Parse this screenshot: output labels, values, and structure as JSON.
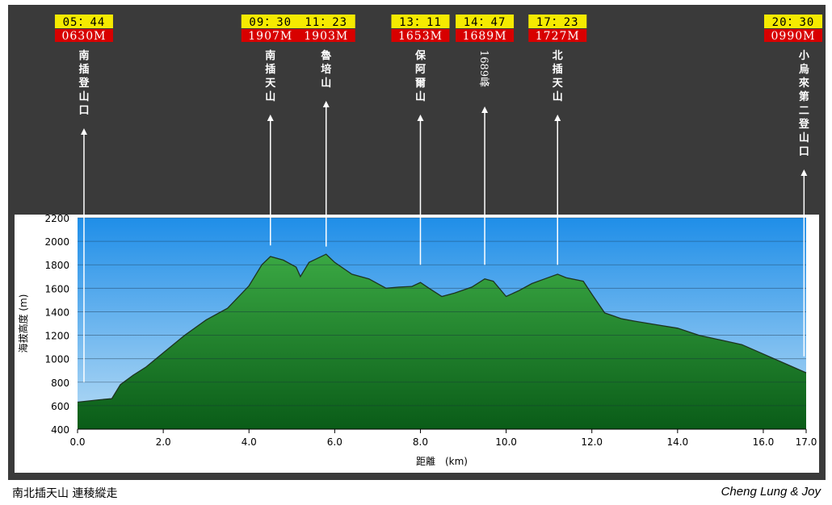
{
  "footer": {
    "title": "南北插天山 連稜縱走",
    "credit": "Cheng Lung & Joy"
  },
  "colors": {
    "frame": "#3a3a3a",
    "sky_top": "#1f8ee8",
    "sky_bottom": "#b8dcf5",
    "terrain_top": "#3aa843",
    "terrain_bottom": "#0a5c18",
    "time_box": "#f5ea00",
    "elev_box": "#d80000",
    "arrow": "#ffffff"
  },
  "waypoints": [
    {
      "time": "05：44",
      "elev": "0630M",
      "name": "南插登山口",
      "x": 0.15,
      "tip": 800
    },
    {
      "time": "09：30",
      "elev": "1907M",
      "name": "南插天山",
      "x": 4.5,
      "tip": 1965
    },
    {
      "time": "11：23",
      "elev": "1903M",
      "name": "魯培山",
      "x": 5.8,
      "tip": 1955
    },
    {
      "time": "13：11",
      "elev": "1653M",
      "name": "保阿爾山",
      "x": 8.0,
      "tip": 1800
    },
    {
      "time": "14：47",
      "elev": "1689M",
      "name": "1689峰",
      "x": 9.5,
      "tip": 1800
    },
    {
      "time": "17：23",
      "elev": "1727M",
      "name": "北插天山",
      "x": 11.2,
      "tip": 1800
    },
    {
      "time": "20：30",
      "elev": "0990M",
      "name": "小烏來第二登山口",
      "x": 16.95,
      "tip": 1020
    }
  ],
  "chart_data": {
    "type": "area",
    "title": "",
    "xlabel": "距離　(km)",
    "ylabel": "海拔高度 (m)",
    "xlim": [
      0,
      17.0
    ],
    "ylim": [
      400,
      2200
    ],
    "grid": true,
    "legend": "none",
    "x_ticks": [
      0,
      2,
      4,
      6,
      8,
      10,
      12,
      14,
      16,
      17
    ],
    "x_tick_labels": [
      "0.0",
      "2.0",
      "4.0",
      "6.0",
      "8.0",
      "10.0",
      "12.0",
      "14.0",
      "16.0",
      "17.0"
    ],
    "y_ticks": [
      400,
      600,
      800,
      1000,
      1200,
      1400,
      1600,
      1800,
      2000,
      2200
    ],
    "y_tick_labels": [
      "400",
      "600",
      "800",
      "1000",
      "1200",
      "1400",
      "1600",
      "1800",
      "2000",
      "2200"
    ],
    "series": [
      {
        "x": [
          0.0,
          0.5,
          0.8,
          1.0,
          1.3,
          1.6,
          2.0,
          2.5,
          3.0,
          3.5,
          4.0,
          4.3,
          4.5,
          4.8,
          5.1,
          5.2,
          5.4,
          5.8,
          6.0,
          6.4,
          6.8,
          7.2,
          7.5,
          7.8,
          8.0,
          8.2,
          8.5,
          8.8,
          9.2,
          9.5,
          9.7,
          10.0,
          10.3,
          10.6,
          10.9,
          11.2,
          11.4,
          11.8,
          12.0,
          12.3,
          12.7,
          13.0,
          13.5,
          14.0,
          14.5,
          15.0,
          15.5,
          16.0,
          16.5,
          17.0
        ],
        "y": [
          630,
          650,
          660,
          780,
          860,
          930,
          1050,
          1200,
          1330,
          1430,
          1620,
          1800,
          1870,
          1840,
          1780,
          1700,
          1820,
          1890,
          1820,
          1720,
          1680,
          1600,
          1610,
          1615,
          1650,
          1600,
          1530,
          1560,
          1610,
          1680,
          1660,
          1530,
          1580,
          1640,
          1680,
          1720,
          1690,
          1660,
          1550,
          1390,
          1340,
          1320,
          1290,
          1260,
          1200,
          1160,
          1120,
          1040,
          960,
          880
        ]
      }
    ]
  }
}
